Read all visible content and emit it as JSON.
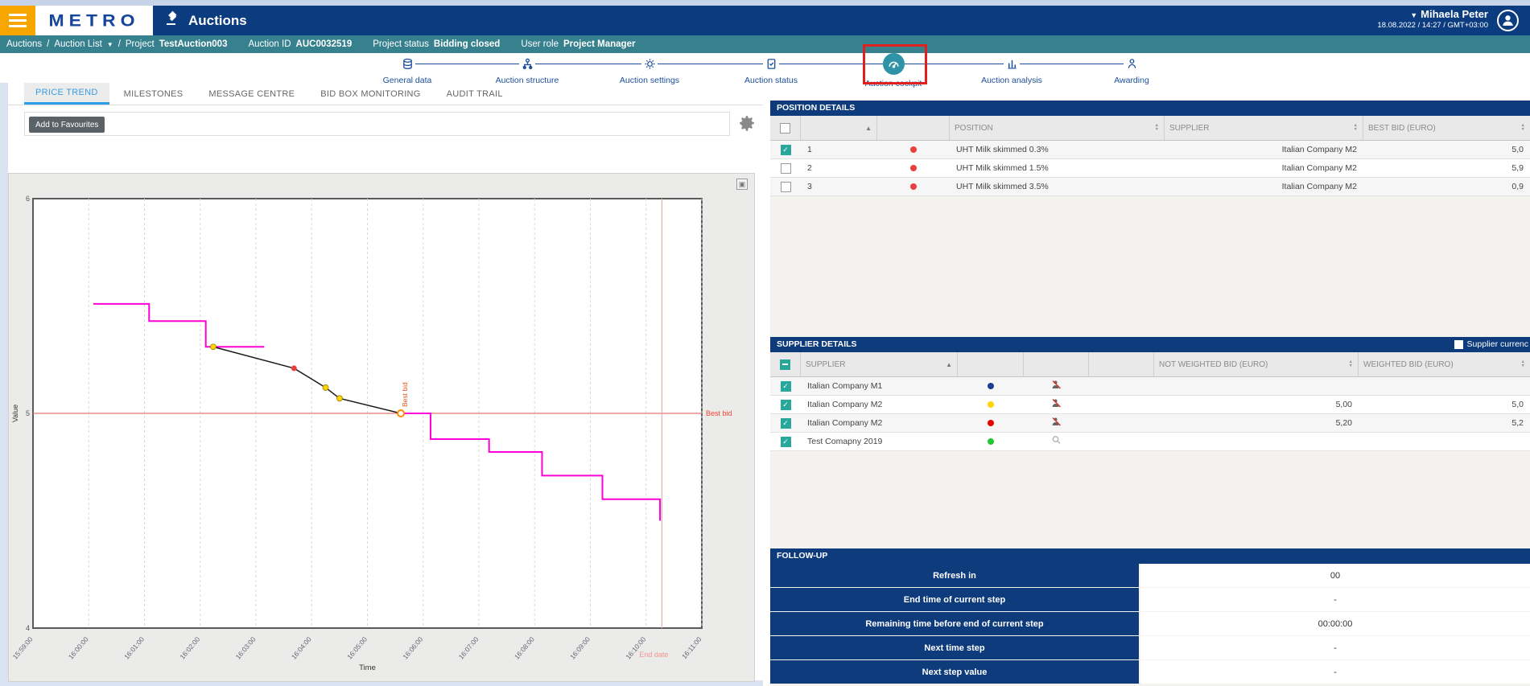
{
  "header": {
    "brand": "METRO",
    "app_title": "Auctions",
    "user_name": "Mihaela Peter",
    "user_datetime": "18.08.2022 / 14:27 / GMT+03:00"
  },
  "breadcrumb": {
    "root": "Auctions",
    "list": "Auction List",
    "sep": "/",
    "project_label": "Project",
    "project_value": "TestAuction003",
    "auction_id_label": "Auction ID",
    "auction_id_value": "AUC0032519",
    "status_label": "Project status",
    "status_value": "Bidding closed",
    "role_label": "User role",
    "role_value": "Project Manager"
  },
  "stepper": {
    "steps": [
      {
        "label": "General data",
        "icon": "database-icon"
      },
      {
        "label": "Auction structure",
        "icon": "sitemap-icon"
      },
      {
        "label": "Auction settings",
        "icon": "gear-icon"
      },
      {
        "label": "Auction status",
        "icon": "checklist-icon"
      },
      {
        "label": "Auction cockpit",
        "icon": "gauge-icon",
        "active": true,
        "highlighted": true
      },
      {
        "label": "Auction analysis",
        "icon": "bar-chart-icon"
      },
      {
        "label": "Awarding",
        "icon": "person-icon"
      }
    ]
  },
  "tabs": [
    "PRICE TREND",
    "MILESTONES",
    "MESSAGE CENTRE",
    "BID BOX MONITORING",
    "AUDIT TRAIL"
  ],
  "active_tab": "PRICE TREND",
  "toolbar": {
    "favourites_tooltip": "Add to Favourites"
  },
  "position_details": {
    "title": "POSITION DETAILS",
    "columns": {
      "position": "POSITION",
      "supplier": "SUPPLIER",
      "best_bid": "BEST BID (EURO)"
    },
    "rows": [
      {
        "checked": true,
        "index": "1",
        "dot": "#e8413c",
        "position": "UHT Milk skimmed 0.3%",
        "supplier": "Italian Company M2",
        "best_bid": "5,0"
      },
      {
        "checked": false,
        "index": "2",
        "dot": "#e8413c",
        "position": "UHT Milk skimmed 1.5%",
        "supplier": "Italian Company M2",
        "best_bid": "5,9"
      },
      {
        "checked": false,
        "index": "3",
        "dot": "#e8413c",
        "position": "UHT Milk skimmed 3.5%",
        "supplier": "Italian Company M2",
        "best_bid": "0,9"
      }
    ]
  },
  "supplier_details": {
    "title": "SUPPLIER DETAILS",
    "currency_toggle_label": "Supplier currenc",
    "columns": {
      "supplier": "SUPPLIER",
      "not_weighted": "NOT WEIGHTED BID (EURO)",
      "weighted": "WEIGHTED BID (EURO)"
    },
    "rows": [
      {
        "checked": true,
        "supplier": "Italian Company M1",
        "dot": "#1d3e8f",
        "icon": "bid-muted-icon",
        "not_weighted": "",
        "weighted": ""
      },
      {
        "checked": true,
        "supplier": "Italian Company M2",
        "dot": "#ffd400",
        "icon": "bid-muted-icon",
        "not_weighted": "5,00",
        "weighted": "5,0"
      },
      {
        "checked": true,
        "supplier": "Italian Company M2",
        "dot": "#e80000",
        "icon": "bid-muted-icon",
        "not_weighted": "5,20",
        "weighted": "5,2"
      },
      {
        "checked": true,
        "supplier": "Test Comapny 2019",
        "dot": "#21c832",
        "icon": "magnifier-icon",
        "not_weighted": "",
        "weighted": ""
      }
    ]
  },
  "follow_up": {
    "title": "FOLLOW-UP",
    "rows": [
      {
        "label": "Refresh in",
        "value": "00"
      },
      {
        "label": "End time of current step",
        "value": "-"
      },
      {
        "label": "Remaining time before end of current step",
        "value": "00:00:00"
      },
      {
        "label": "Next time step",
        "value": "-"
      },
      {
        "label": "Next step value",
        "value": "-"
      }
    ]
  },
  "chart_data": {
    "type": "line",
    "xlabel": "Time",
    "ylabel": "Value",
    "ylim": [
      4,
      6
    ],
    "yticks": [
      "4",
      "5",
      "6"
    ],
    "x_domain_seconds": [
      0,
      720
    ],
    "xticks": [
      "15:59:00",
      "16:00:00",
      "16:01:00",
      "16:02:00",
      "16:03:00",
      "16:04:00",
      "16:05:00",
      "16:06:00",
      "16:07:00",
      "16:08:00",
      "16:09:00",
      "16:10:00",
      "16:11:00"
    ],
    "grid": "vertical-dashed",
    "series": [
      {
        "name": "price trend",
        "color": "#ff00d4",
        "type": "step",
        "points": [
          [
            65,
            5.51
          ],
          [
            125,
            5.51
          ],
          [
            125,
            5.43
          ],
          [
            186,
            5.43
          ],
          [
            186,
            5.31
          ],
          [
            249,
            5.31
          ]
        ]
      },
      {
        "name": "price trend (continued)",
        "color": "#ff00d4",
        "type": "step",
        "points": [
          [
            396,
            5.0
          ],
          [
            428,
            5.0
          ],
          [
            428,
            4.88
          ],
          [
            491,
            4.88
          ],
          [
            491,
            4.82
          ],
          [
            548,
            4.82
          ],
          [
            548,
            4.71
          ],
          [
            613,
            4.71
          ],
          [
            613,
            4.6
          ],
          [
            675,
            4.6
          ],
          [
            675,
            4.5
          ]
        ]
      },
      {
        "name": "bids",
        "color": "#1a1a1a",
        "type": "line",
        "points": [
          [
            194,
            5.31
          ],
          [
            281,
            5.21
          ],
          [
            315,
            5.12
          ],
          [
            330,
            5.07
          ],
          [
            396,
            5.0
          ]
        ],
        "markers": [
          {
            "t": 194,
            "v": 5.31,
            "color": "#ffd400"
          },
          {
            "t": 281,
            "v": 5.21,
            "color": "#e8413c"
          },
          {
            "t": 315,
            "v": 5.12,
            "color": "#ffd400"
          },
          {
            "t": 330,
            "v": 5.07,
            "color": "#ffd400"
          },
          {
            "t": 396,
            "v": 5.0,
            "color": "ring"
          }
        ]
      }
    ],
    "annotations": {
      "best_bid_line": {
        "v": 5,
        "label": "Best bid",
        "line_color": "#e57373",
        "label_color": "#f44336"
      },
      "best_bid_marker": {
        "t": 396,
        "label": "Best bid",
        "label_color": "#e2551b"
      },
      "end_date_line": {
        "t": 677,
        "label": "End date",
        "line_color": "#e6b0aa",
        "label_color": "#f2948c"
      }
    }
  }
}
